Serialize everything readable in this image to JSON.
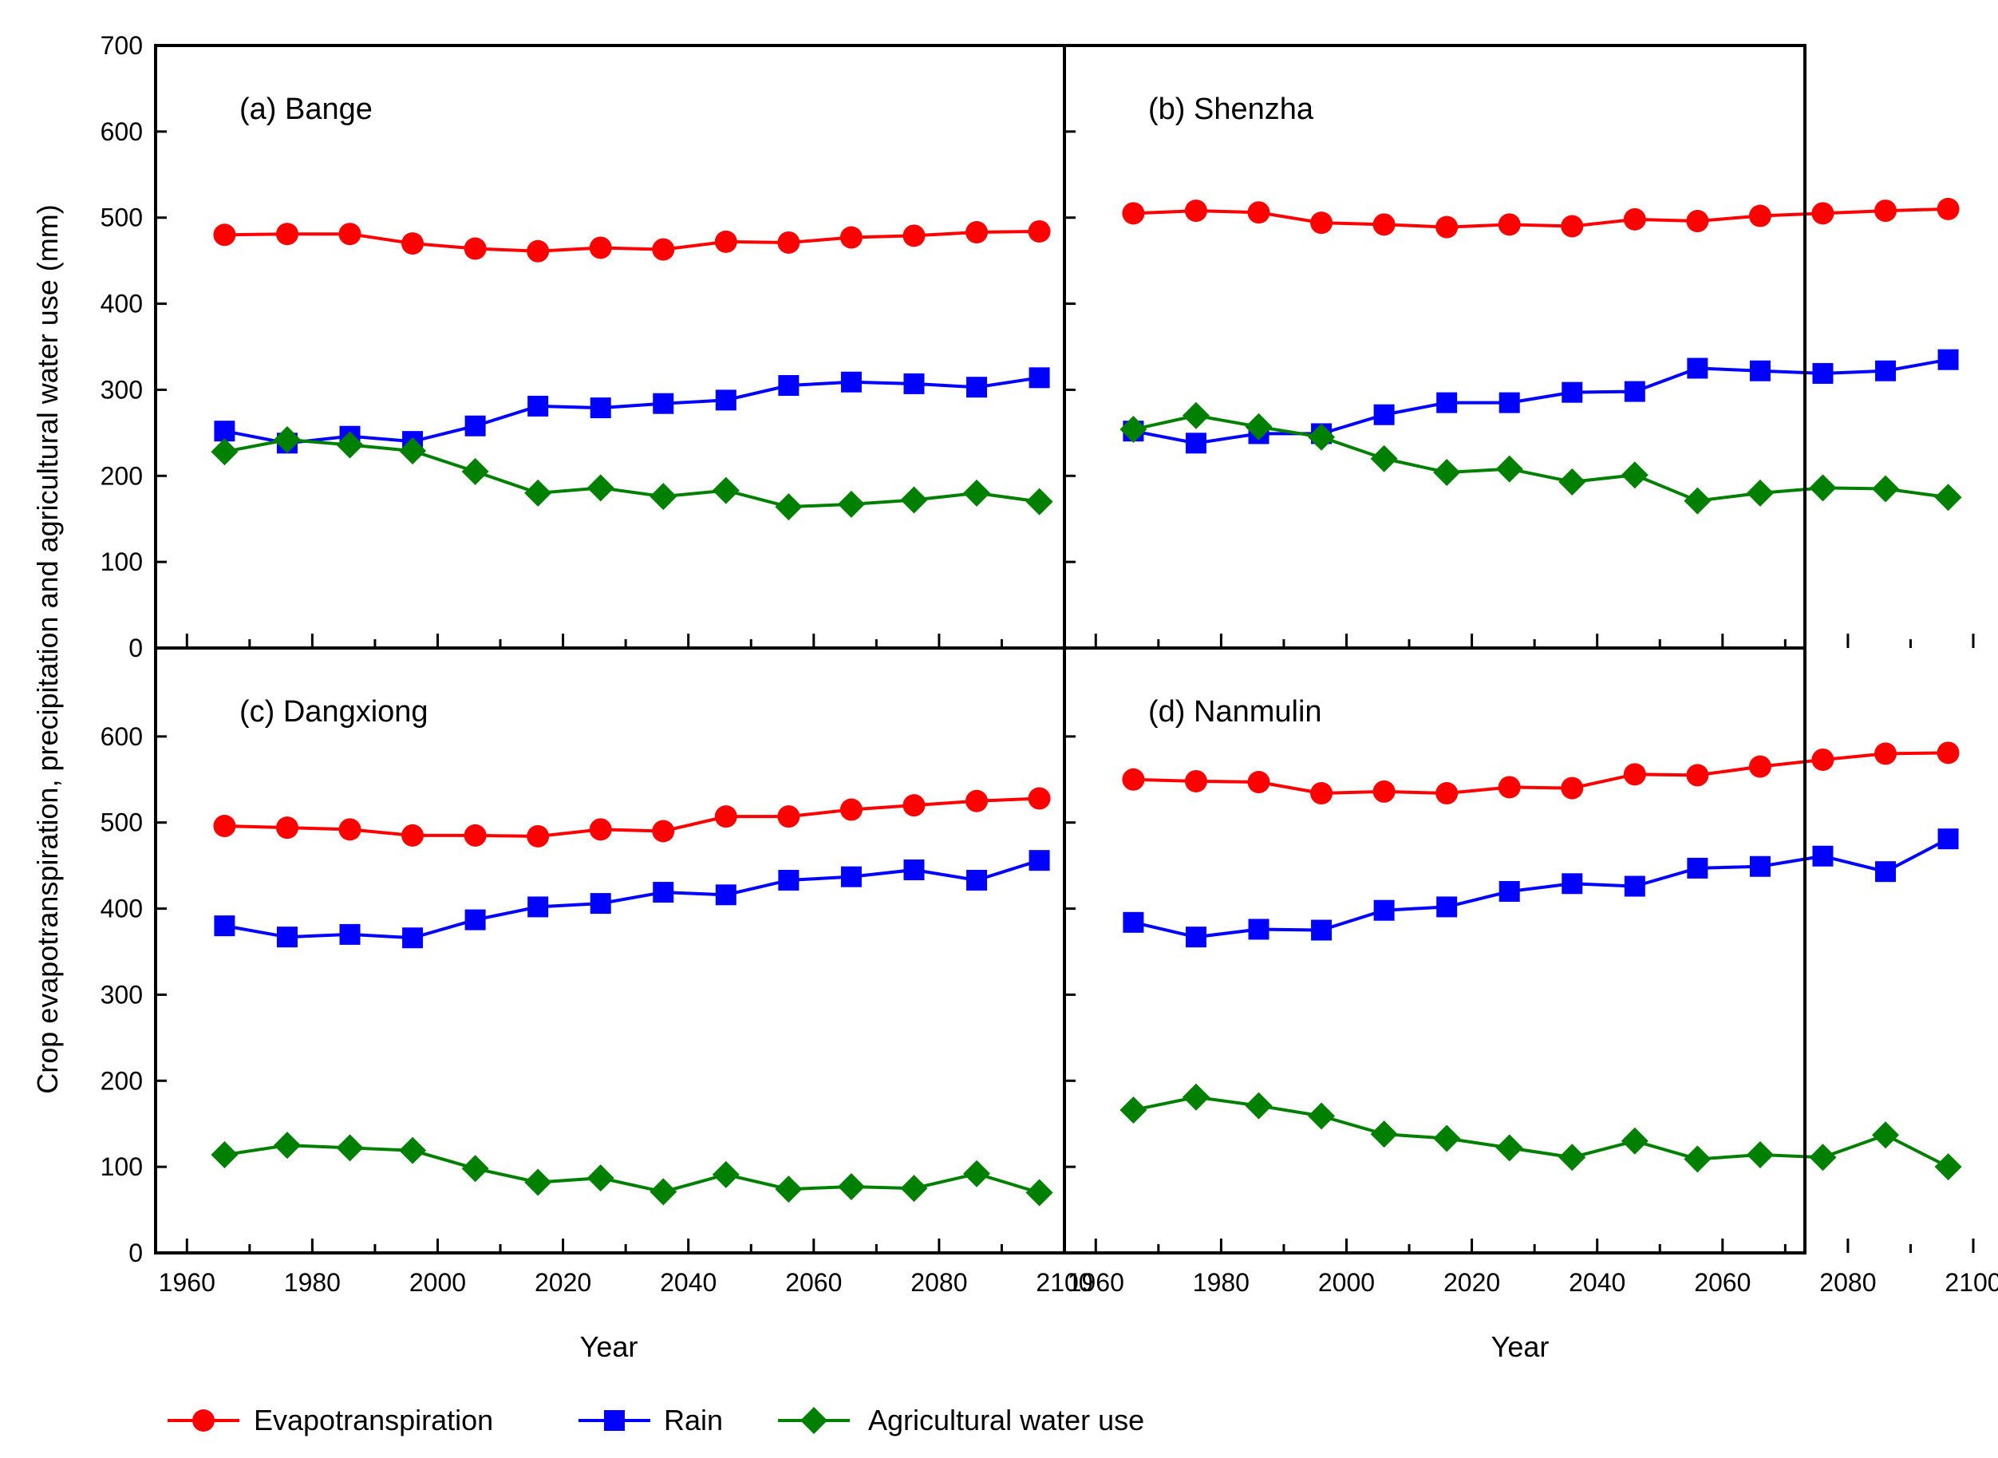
{
  "colors": {
    "evapotranspiration": "#ff0000",
    "rain": "#0000ff",
    "agricultural_water_use": "#008000"
  },
  "chart_data": {
    "type": "line",
    "ylabel": "Crop evapotranspiration, precipitation and agricultural water use (mm)",
    "xlabel": "Year",
    "xlim": [
      1955,
      2100
    ],
    "ylim": [
      0,
      700
    ],
    "x_ticks": [
      1960,
      1980,
      2000,
      2020,
      2040,
      2060,
      2080,
      2100
    ],
    "x_tick_labels": [
      "1960",
      "1980",
      "2000",
      "2020",
      "2040",
      "2060",
      "2080",
      "2100"
    ],
    "y_ticks_top": [
      0,
      100,
      200,
      300,
      400,
      500,
      600,
      700
    ],
    "y_tick_labels_top": [
      "0",
      "100",
      "200",
      "300",
      "400",
      "500",
      "600",
      "700"
    ],
    "y_ticks_bottom": [
      0,
      100,
      200,
      300,
      400,
      500,
      600
    ],
    "y_tick_labels_bottom": [
      "0",
      "100",
      "200",
      "300",
      "400",
      "500",
      "600"
    ],
    "x": [
      1966,
      1976,
      1986,
      1996,
      2006,
      2016,
      2026,
      2036,
      2046,
      2056,
      2066,
      2076,
      2086,
      2096
    ],
    "legend": [
      "Evapotranspiration",
      "Rain",
      "Agricultural water use"
    ],
    "legend_position": "bottom",
    "panels": [
      {
        "title": "(a) Bange",
        "series": [
          {
            "name": "Evapotranspiration",
            "values": [
              480,
              481,
              481,
              470,
              464,
              461,
              465,
              463,
              472,
              471,
              477,
              479,
              483,
              484
            ]
          },
          {
            "name": "Rain",
            "values": [
              252,
              238,
              246,
              240,
              258,
              281,
              279,
              284,
              288,
              305,
              309,
              307,
              303,
              314
            ]
          },
          {
            "name": "Agricultural water use",
            "values": [
              228,
              242,
              236,
              229,
              205,
              180,
              186,
              176,
              183,
              164,
              167,
              172,
              180,
              170
            ]
          }
        ]
      },
      {
        "title": "(b) Shenzha",
        "series": [
          {
            "name": "Evapotranspiration",
            "values": [
              505,
              508,
              506,
              494,
              492,
              489,
              492,
              490,
              498,
              496,
              502,
              505,
              508,
              510
            ]
          },
          {
            "name": "Rain",
            "values": [
              252,
              238,
              249,
              249,
              271,
              285,
              285,
              297,
              298,
              325,
              322,
              319,
              322,
              335
            ]
          },
          {
            "name": "Agricultural water use",
            "values": [
              254,
              270,
              257,
              245,
              220,
              204,
              208,
              193,
              201,
              171,
              180,
              186,
              185,
              175
            ]
          }
        ]
      },
      {
        "title": "(c) Dangxiong",
        "series": [
          {
            "name": "Evapotranspiration",
            "values": [
              496,
              494,
              492,
              485,
              485,
              484,
              492,
              490,
              507,
              507,
              515,
              520,
              525,
              528
            ]
          },
          {
            "name": "Rain",
            "values": [
              380,
              367,
              370,
              366,
              387,
              402,
              406,
              419,
              416,
              433,
              437,
              445,
              433,
              456
            ]
          },
          {
            "name": "Agricultural water use",
            "values": [
              114,
              125,
              122,
              119,
              98,
              82,
              87,
              71,
              91,
              74,
              77,
              75,
              92,
              70
            ]
          }
        ]
      },
      {
        "title": "(d) Nanmulin",
        "series": [
          {
            "name": "Evapotranspiration",
            "values": [
              550,
              548,
              547,
              534,
              536,
              534,
              541,
              540,
              556,
              555,
              565,
              573,
              580,
              581
            ]
          },
          {
            "name": "Rain",
            "values": [
              384,
              367,
              376,
              375,
              398,
              402,
              420,
              429,
              426,
              447,
              449,
              461,
              443,
              481
            ]
          },
          {
            "name": "Agricultural water use",
            "values": [
              166,
              181,
              171,
              159,
              138,
              133,
              122,
              111,
              130,
              109,
              114,
              111,
              137,
              100
            ]
          }
        ]
      }
    ]
  }
}
